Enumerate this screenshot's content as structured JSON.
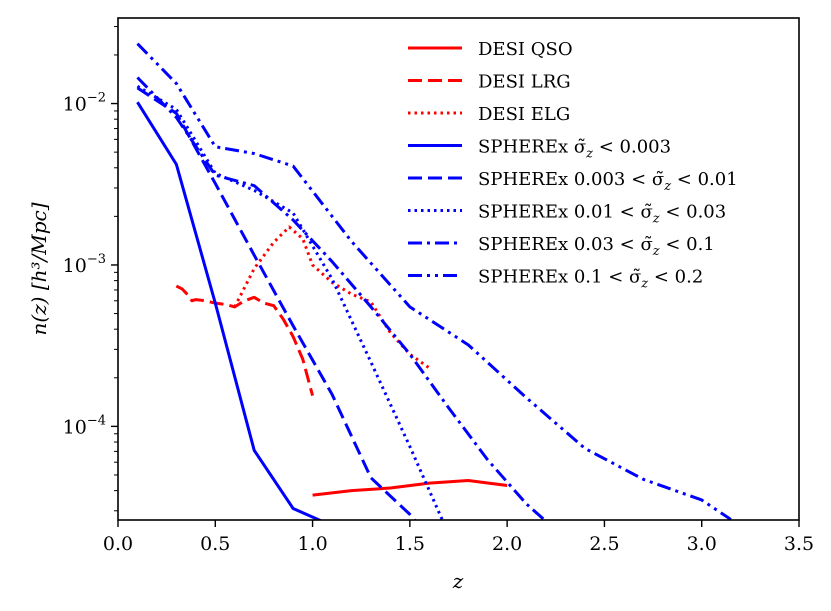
{
  "chart_data": {
    "type": "line",
    "title": "",
    "xlabel": "z",
    "ylabel": "n(z) [h³/Mpc]",
    "xlim": [
      0.0,
      3.5
    ],
    "ylim_log10": [
      -4.58,
      -1.47
    ],
    "yscale": "log",
    "grid": false,
    "legend_position": "top-right",
    "xticks": [
      {
        "value": 0.0,
        "label": "0.0"
      },
      {
        "value": 0.5,
        "label": "0.5"
      },
      {
        "value": 1.0,
        "label": "1.0"
      },
      {
        "value": 1.5,
        "label": "1.5"
      },
      {
        "value": 2.0,
        "label": "2.0"
      },
      {
        "value": 2.5,
        "label": "2.5"
      },
      {
        "value": 3.0,
        "label": "3.0"
      },
      {
        "value": 3.5,
        "label": "3.5"
      }
    ],
    "yticks": [
      {
        "exp": -4,
        "base": "10",
        "sup": "−4"
      },
      {
        "exp": -3,
        "base": "10",
        "sup": "−3"
      },
      {
        "exp": -2,
        "base": "10",
        "sup": "−2"
      }
    ],
    "series": [
      {
        "name": "DESI QSO",
        "label": "DESI QSO",
        "color": "#ff0000",
        "style": "solid",
        "x": [
          1.0,
          1.2,
          1.4,
          1.6,
          1.8,
          2.0
        ],
        "y": [
          3.75e-05,
          4e-05,
          4.15e-05,
          4.45e-05,
          4.62e-05,
          4.3e-05
        ]
      },
      {
        "name": "DESI LRG",
        "label": "DESI LRG",
        "color": "#ff0000",
        "style": "dashed",
        "x": [
          0.3,
          0.33,
          0.36,
          0.38,
          0.4,
          0.45,
          0.5,
          0.55,
          0.6,
          0.65,
          0.7,
          0.75,
          0.8,
          0.85,
          0.9,
          0.95,
          1.0
        ],
        "y": [
          0.00074,
          0.00071,
          0.00065,
          0.0006,
          0.00061,
          0.0006,
          0.00058,
          0.00057,
          0.00055,
          0.0006,
          0.00063,
          0.00058,
          0.00056,
          0.00046,
          0.00036,
          0.00026,
          0.000155
        ]
      },
      {
        "name": "DESI ELG",
        "label": "DESI ELG",
        "color": "#ff0000",
        "style": "dotted",
        "x": [
          0.6,
          0.7,
          0.8,
          0.88,
          0.95,
          1.0,
          1.1,
          1.2,
          1.3,
          1.4,
          1.5,
          1.6
        ],
        "y": [
          0.00055,
          0.00095,
          0.00138,
          0.00172,
          0.00145,
          0.001,
          0.00078,
          0.00066,
          0.00059,
          0.00038,
          0.00028,
          0.00023
        ]
      },
      {
        "name": "SPHEREx σ<0.003",
        "label": "SPHEREx σ̃<sub>z</sub> < 0.003",
        "color": "#0000ff",
        "style": "solid",
        "x": [
          0.1,
          0.3,
          0.5,
          0.7,
          0.9,
          1.05
        ],
        "y": [
          0.0102,
          0.0042,
          0.00058,
          7.1e-05,
          3.1e-05,
          2.58e-05
        ]
      },
      {
        "name": "SPHEREx 0.003<σ<0.01",
        "label": "SPHEREx 0.003 < σ̃<sub>z</sub> < 0.01",
        "color": "#0000ff",
        "style": "dashed",
        "x": [
          0.1,
          0.3,
          0.5,
          0.7,
          0.9,
          1.1,
          1.3,
          1.5,
          1.53
        ],
        "y": [
          0.0125,
          0.0087,
          0.0032,
          0.00115,
          0.00042,
          0.000158,
          4.8e-05,
          2.85e-05,
          2.58e-05
        ]
      },
      {
        "name": "SPHEREx 0.01<σ<0.03",
        "label": "SPHEREx 0.01 < σ̃<sub>z</sub> < 0.03",
        "color": "#0000ff",
        "style": "dotted",
        "x": [
          0.1,
          0.3,
          0.5,
          0.7,
          0.9,
          1.1,
          1.3,
          1.5,
          1.67
        ],
        "y": [
          0.0128,
          0.0092,
          0.0037,
          0.0029,
          0.0021,
          0.00082,
          0.00025,
          7.5e-05,
          2.58e-05
        ]
      },
      {
        "name": "SPHEREx 0.03<σ<0.1",
        "label": "SPHEREx 0.03 < σ̃<sub>z</sub> < 0.1",
        "color": "#0000ff",
        "style": "dashdot",
        "x": [
          0.1,
          0.3,
          0.5,
          0.7,
          0.9,
          1.1,
          1.3,
          1.5,
          1.7,
          1.9,
          2.1,
          2.2
        ],
        "y": [
          0.0145,
          0.0082,
          0.0036,
          0.0031,
          0.0019,
          0.00105,
          0.00055,
          0.00028,
          0.00013,
          6.2e-05,
          3.3e-05,
          2.58e-05
        ]
      },
      {
        "name": "SPHEREx 0.1<σ<0.2",
        "label": "SPHEREx 0.1 < σ̃<sub>z</sub> < 0.2",
        "color": "#0000ff",
        "style": "dashdotdot",
        "x": [
          0.1,
          0.3,
          0.5,
          0.7,
          0.9,
          1.2,
          1.5,
          1.8,
          2.1,
          2.4,
          2.7,
          3.0,
          3.15
        ],
        "y": [
          0.0235,
          0.0133,
          0.0054,
          0.0049,
          0.0041,
          0.0014,
          0.00055,
          0.00032,
          0.00015,
          7.3e-05,
          4.7e-05,
          3.5e-05,
          2.65e-05
        ]
      }
    ]
  }
}
